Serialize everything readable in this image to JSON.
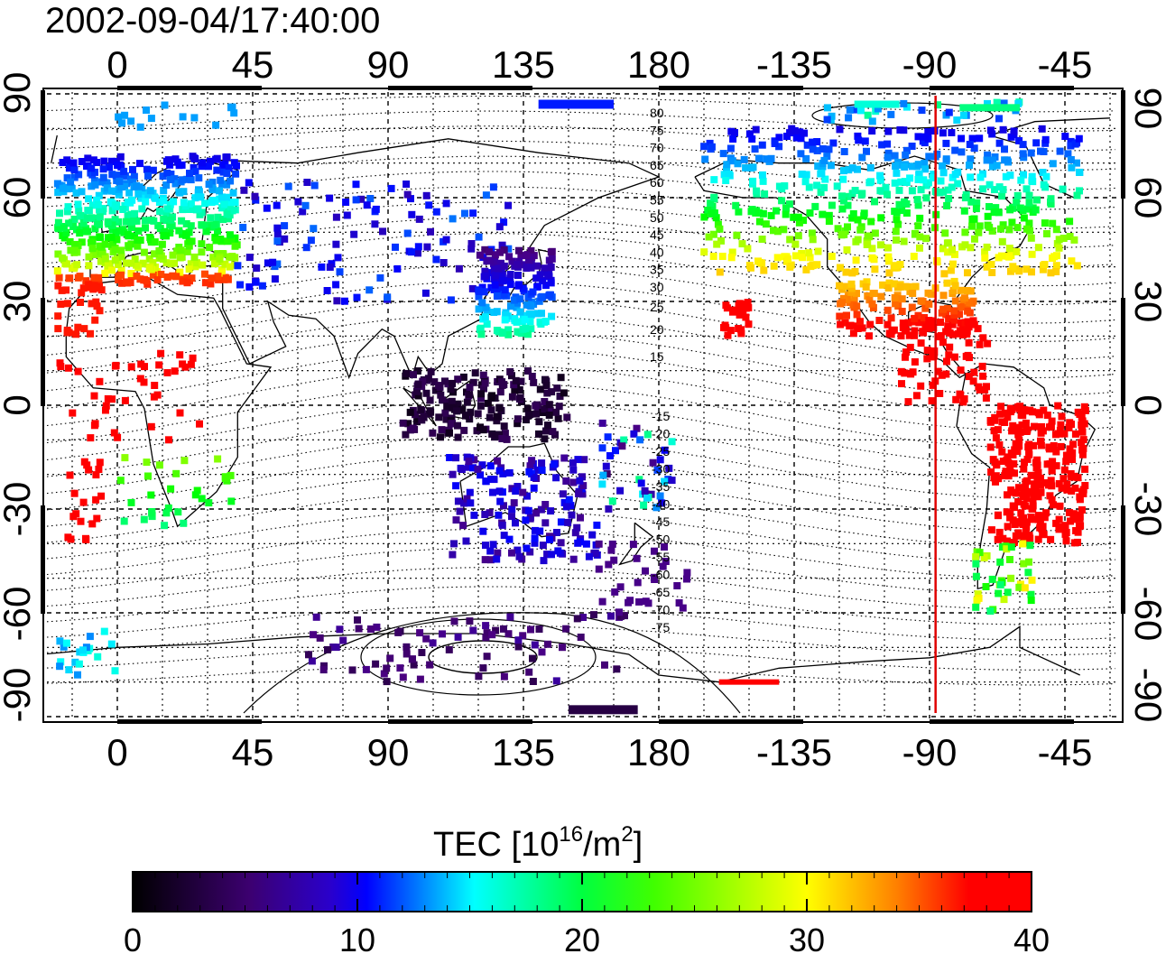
{
  "timestamp": "2002-09-04/17:40:00",
  "map": {
    "lon_tick_labels": [
      "0",
      "45",
      "90",
      "135",
      "180",
      "-135",
      "-90",
      "-45"
    ],
    "lat_tick_labels": [
      "90",
      "60",
      "30",
      "0",
      "-30",
      "-60",
      "-90"
    ],
    "magnetic_lat_labels_north": [
      "80",
      "75",
      "70",
      "65",
      "60",
      "55",
      "50",
      "45",
      "40",
      "35",
      "30",
      "25",
      "20",
      "15"
    ],
    "magnetic_lat_labels_south": [
      "-15",
      "-20",
      "-25",
      "-30",
      "-35",
      "-40",
      "-45",
      "-50",
      "-55",
      "-60",
      "-65",
      "-70",
      "-75"
    ],
    "marker_line_longitude": -88,
    "marker_line_color": "#e00000"
  },
  "colorbar": {
    "title_main": "TEC  [10",
    "title_sup1": "16",
    "title_mid": "/m",
    "title_sup2": "2",
    "title_end": "]",
    "tick_labels": [
      "0",
      "10",
      "20",
      "30",
      "40"
    ],
    "range": [
      0,
      40
    ]
  },
  "palette": [
    "#000000",
    "#4b0082",
    "#0000ff",
    "#00ffff",
    "#00ff00",
    "#ffff00",
    "#ff8000",
    "#ff0000"
  ]
}
